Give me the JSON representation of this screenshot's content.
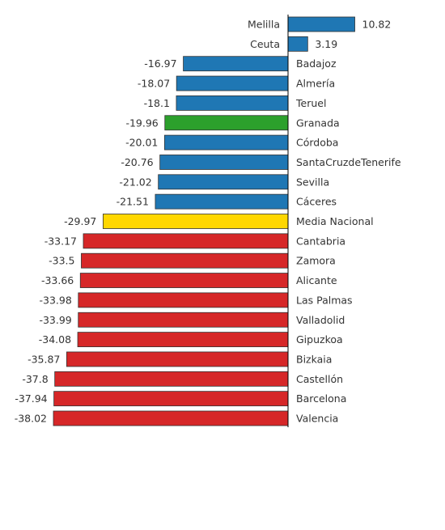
{
  "chart_data": {
    "type": "bar",
    "orientation": "horizontal",
    "title": "",
    "xlabel": "",
    "ylabel": "",
    "grid": false,
    "legend": "none",
    "xlim": [
      -38.02,
      10.82
    ],
    "categories": [
      "Melilla",
      "Ceuta",
      "Badajoz",
      "Almería",
      "Teruel",
      "Granada",
      "Córdoba",
      "SantaCruzdeTenerife",
      "Sevilla",
      "Cáceres",
      "Media Nacional",
      "Cantabria",
      "Zamora",
      "Alicante",
      "Las Palmas",
      "Valladolid",
      "Gipuzkoa",
      "Bizkaia",
      "Castellón",
      "Barcelona",
      "Valencia"
    ],
    "values": [
      10.82,
      3.19,
      -16.97,
      -18.07,
      -18.1,
      -19.96,
      -20.01,
      -20.76,
      -21.02,
      -21.51,
      -29.97,
      -33.17,
      -33.5,
      -33.66,
      -33.98,
      -33.99,
      -34.08,
      -35.87,
      -37.8,
      -37.94,
      -38.02
    ],
    "value_labels": [
      "10.82",
      "3.19",
      "-16.97",
      "-18.07",
      "-18.1",
      "-19.96",
      "-20.01",
      "-20.76",
      "-21.02",
      "-21.51",
      "-29.97",
      "-33.17",
      "-33.5",
      "-33.66",
      "-33.98",
      "-33.99",
      "-34.08",
      "-35.87",
      "-37.8",
      "-37.94",
      "-38.02"
    ],
    "bar_colors": [
      "#1f77b4",
      "#1f77b4",
      "#1f77b4",
      "#1f77b4",
      "#1f77b4",
      "#2ca02c",
      "#1f77b4",
      "#1f77b4",
      "#1f77b4",
      "#1f77b4",
      "#ffd700",
      "#d62728",
      "#d62728",
      "#d62728",
      "#d62728",
      "#d62728",
      "#d62728",
      "#d62728",
      "#d62728",
      "#d62728",
      "#d62728"
    ],
    "colors": {
      "positive_top": "#1f77b4",
      "highlight": "#2ca02c",
      "average": "#ffd700",
      "bottom": "#d62728",
      "bar_outline": "#333333",
      "axis": "#000000"
    }
  }
}
